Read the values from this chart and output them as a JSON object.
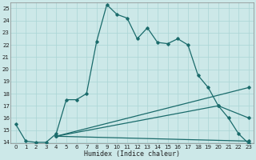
{
  "xlabel": "Humidex (Indice chaleur)",
  "bg_color": "#cce8e8",
  "line_color": "#1a6b6b",
  "grid_color": "#aad4d4",
  "xlim": [
    -0.5,
    23.5
  ],
  "ylim": [
    13.9,
    25.5
  ],
  "xticks": [
    0,
    1,
    2,
    3,
    4,
    5,
    6,
    7,
    8,
    9,
    10,
    11,
    12,
    13,
    14,
    15,
    16,
    17,
    18,
    19,
    20,
    21,
    22,
    23
  ],
  "yticks": [
    14,
    15,
    16,
    17,
    18,
    19,
    20,
    21,
    22,
    23,
    24,
    25
  ],
  "series0": {
    "x": [
      0,
      1,
      2,
      3,
      4,
      5,
      6,
      7,
      8,
      9,
      10,
      11,
      12,
      13,
      14,
      15,
      16,
      17,
      18,
      19,
      20,
      21,
      22,
      23
    ],
    "y": [
      15.5,
      14.1,
      14.0,
      14.0,
      14.7,
      17.5,
      17.5,
      18.0,
      22.3,
      25.3,
      24.5,
      24.2,
      22.5,
      23.4,
      22.2,
      22.1,
      22.5,
      22.0,
      19.5,
      18.5,
      17.0,
      16.0,
      14.7,
      13.9
    ]
  },
  "fan_lines": [
    {
      "x": [
        4,
        23
      ],
      "y": [
        14.5,
        18.5
      ]
    },
    {
      "x": [
        4,
        20,
        23
      ],
      "y": [
        14.5,
        17.0,
        16.0
      ]
    },
    {
      "x": [
        4,
        23
      ],
      "y": [
        14.5,
        14.1
      ]
    }
  ]
}
